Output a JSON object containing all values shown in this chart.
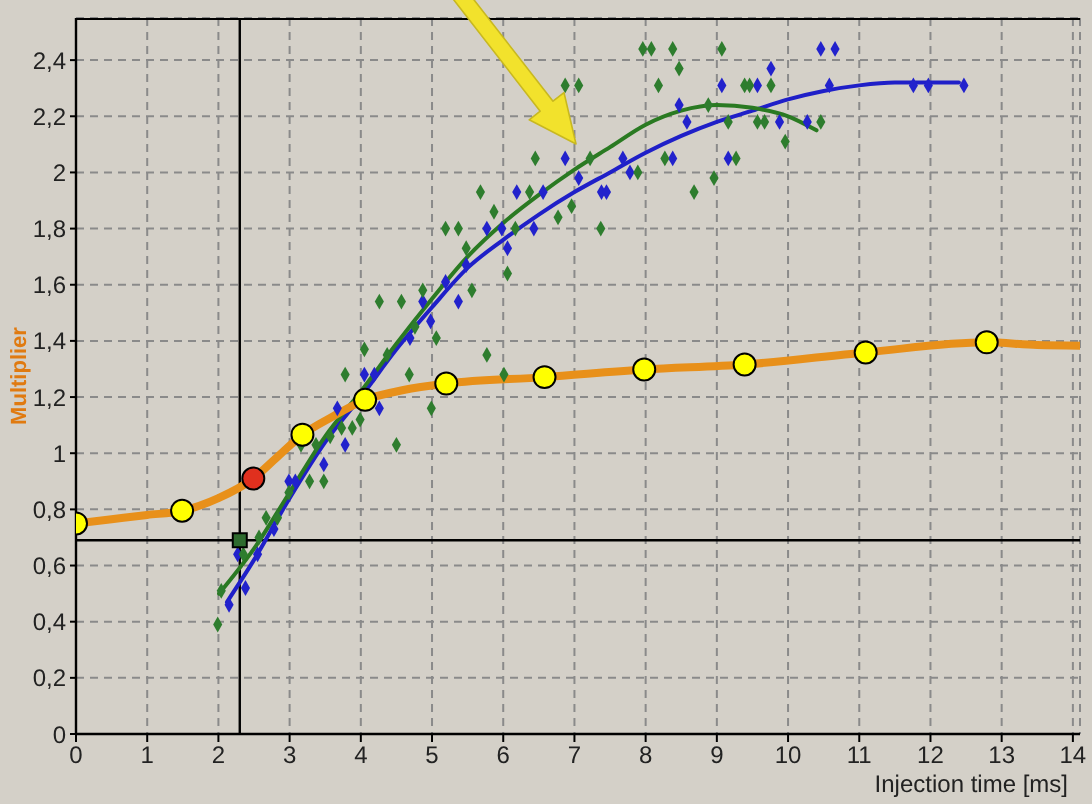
{
  "chart_data": {
    "type": "line",
    "xlabel": "Injection time [ms]",
    "ylabel": "Multiplier",
    "xlim": [
      0,
      14.1
    ],
    "ylim": [
      0,
      2.55
    ],
    "xticks": [
      0,
      1,
      2,
      3,
      4,
      5,
      6,
      7,
      8,
      9,
      10,
      11,
      12,
      13,
      14
    ],
    "yticks": [
      0,
      {
        "value": 0.2,
        "label": "0,2"
      },
      {
        "value": 0.4,
        "label": "0,4"
      },
      {
        "value": 0.6,
        "label": "0,6"
      },
      {
        "value": 0.8,
        "label": "0,8"
      },
      1,
      {
        "value": 1.2,
        "label": "1,2"
      },
      {
        "value": 1.4,
        "label": "1,4"
      },
      {
        "value": 1.6,
        "label": "1,6"
      },
      {
        "value": 1.8,
        "label": "1,8"
      },
      2,
      {
        "value": 2.2,
        "label": "2,2"
      },
      {
        "value": 2.4,
        "label": "2,4"
      }
    ],
    "grid": true,
    "ref_lines": [
      {
        "axis": "x",
        "value": 2.3,
        "color": "#000000"
      },
      {
        "axis": "y",
        "value": 0.69,
        "color": "#000000"
      }
    ],
    "series": [
      {
        "type": "scatter",
        "marker": "diamond",
        "color": "#2222cc",
        "x": [
          2.15,
          2.27,
          2.38,
          2.55,
          2.78,
          2.99,
          3.08,
          3.48,
          3.67,
          3.78,
          4.05,
          4.19,
          4.26,
          4.69,
          4.87,
          4.98,
          5.19,
          5.37,
          5.48,
          5.77,
          5.98,
          6.06,
          6.19,
          6.43,
          6.56,
          6.87,
          7.06,
          7.38,
          7.45,
          7.68,
          7.78,
          8.38,
          8.47,
          8.58,
          9.07,
          9.16,
          9.57,
          9.76,
          9.88,
          10.27,
          10.46,
          10.58,
          10.66,
          11.76,
          11.97,
          12.47
        ],
        "values": [
          0.46,
          0.64,
          0.52,
          0.64,
          0.73,
          0.9,
          0.9,
          0.96,
          1.16,
          1.03,
          1.28,
          1.28,
          1.16,
          1.41,
          1.54,
          1.47,
          1.61,
          1.54,
          1.67,
          1.8,
          1.8,
          1.73,
          1.93,
          1.8,
          1.93,
          2.05,
          1.98,
          1.93,
          1.93,
          2.05,
          2.0,
          2.05,
          2.24,
          2.18,
          2.31,
          2.05,
          2.31,
          2.37,
          2.18,
          2.18,
          2.44,
          2.31,
          2.44,
          2.31,
          2.31,
          2.31
        ]
      },
      {
        "type": "scatter",
        "marker": "diamond",
        "color": "#2e7d2e",
        "x": [
          1.99,
          2.04,
          2.35,
          2.57,
          2.67,
          2.83,
          2.99,
          3.16,
          3.28,
          3.37,
          3.48,
          3.57,
          3.73,
          3.78,
          3.88,
          3.99,
          4.05,
          4.26,
          4.37,
          4.5,
          4.57,
          4.68,
          4.76,
          4.87,
          4.99,
          5.06,
          5.19,
          5.37,
          5.48,
          5.56,
          5.68,
          5.77,
          5.87,
          6.01,
          6.06,
          6.17,
          6.37,
          6.45,
          6.77,
          6.87,
          6.96,
          7.06,
          7.22,
          7.37,
          7.89,
          7.96,
          8.08,
          8.18,
          8.27,
          8.38,
          8.47,
          8.68,
          8.88,
          8.96,
          9.07,
          9.16,
          9.27,
          9.39,
          9.46,
          9.57,
          9.67,
          9.76,
          9.96,
          10.46
        ],
        "values": [
          0.39,
          0.51,
          0.64,
          0.7,
          0.77,
          0.77,
          0.86,
          1.03,
          0.9,
          1.03,
          0.9,
          1.06,
          1.09,
          1.28,
          1.09,
          1.12,
          1.37,
          1.54,
          1.35,
          1.03,
          1.54,
          1.28,
          1.45,
          1.58,
          1.16,
          1.41,
          1.8,
          1.8,
          1.73,
          1.58,
          1.93,
          1.35,
          1.86,
          1.28,
          1.64,
          1.8,
          1.93,
          2.05,
          1.84,
          2.31,
          1.88,
          2.31,
          2.05,
          1.8,
          2.0,
          2.44,
          2.44,
          2.31,
          2.05,
          2.44,
          2.37,
          1.93,
          2.24,
          1.98,
          2.44,
          2.18,
          2.05,
          2.31,
          2.31,
          2.18,
          2.18,
          2.31,
          2.11,
          2.18
        ]
      },
      {
        "marker": "none",
        "color": "#1f1fc8",
        "x": [
          2.12,
          2.5,
          3,
          3.5,
          4,
          4.5,
          5,
          5.5,
          6,
          6.5,
          7,
          7.5,
          8,
          8.5,
          9,
          9.5,
          10,
          10.5,
          11,
          11.5,
          12,
          12.4
        ],
        "values": [
          0.47,
          0.62,
          0.84,
          1.04,
          1.2,
          1.37,
          1.52,
          1.66,
          1.76,
          1.85,
          1.93,
          2.0,
          2.07,
          2.13,
          2.18,
          2.22,
          2.26,
          2.29,
          2.31,
          2.32,
          2.32,
          2.32
        ]
      },
      {
        "marker": "none",
        "color": "#2a7a22",
        "x": [
          2.01,
          2.5,
          3,
          3.5,
          4,
          4.5,
          5,
          5.5,
          6,
          6.5,
          7,
          7.5,
          8,
          8.5,
          9,
          9.5,
          10,
          10.4
        ],
        "values": [
          0.5,
          0.66,
          0.86,
          1.06,
          1.22,
          1.39,
          1.55,
          1.7,
          1.82,
          1.92,
          2.01,
          2.09,
          2.17,
          2.22,
          2.24,
          2.23,
          2.2,
          2.15
        ]
      },
      {
        "marker": "none",
        "color": "#e8901a",
        "x": [
          0,
          0.5,
          1,
          1.49,
          2,
          2.49,
          2.8,
          3.18,
          3.6,
          4.06,
          4.6,
          5.2,
          6.58,
          7.98,
          9.39,
          11.09,
          12.79,
          13.5,
          14.1
        ],
        "values": [
          0.75,
          0.765,
          0.78,
          0.795,
          0.84,
          0.91,
          0.98,
          1.066,
          1.13,
          1.19,
          1.225,
          1.248,
          1.271,
          1.298,
          1.316,
          1.359,
          1.395,
          1.385,
          1.383
        ]
      },
      {
        "type": "scatter",
        "marker": "circle",
        "color": "#ffff00",
        "x": [
          0,
          1.49,
          3.18,
          4.06,
          5.2,
          6.58,
          7.98,
          9.39,
          11.09,
          12.79
        ],
        "values": [
          0.75,
          0.795,
          1.066,
          1.19,
          1.248,
          1.271,
          1.298,
          1.316,
          1.359,
          1.395
        ]
      },
      {
        "type": "scatter",
        "marker": "circle",
        "color": "#e0301e",
        "x": [
          2.49
        ],
        "values": [
          0.91
        ]
      },
      {
        "type": "scatter",
        "marker": "square",
        "color": "#2e6b2e",
        "x": [
          2.3
        ],
        "values": [
          0.69
        ]
      }
    ]
  }
}
